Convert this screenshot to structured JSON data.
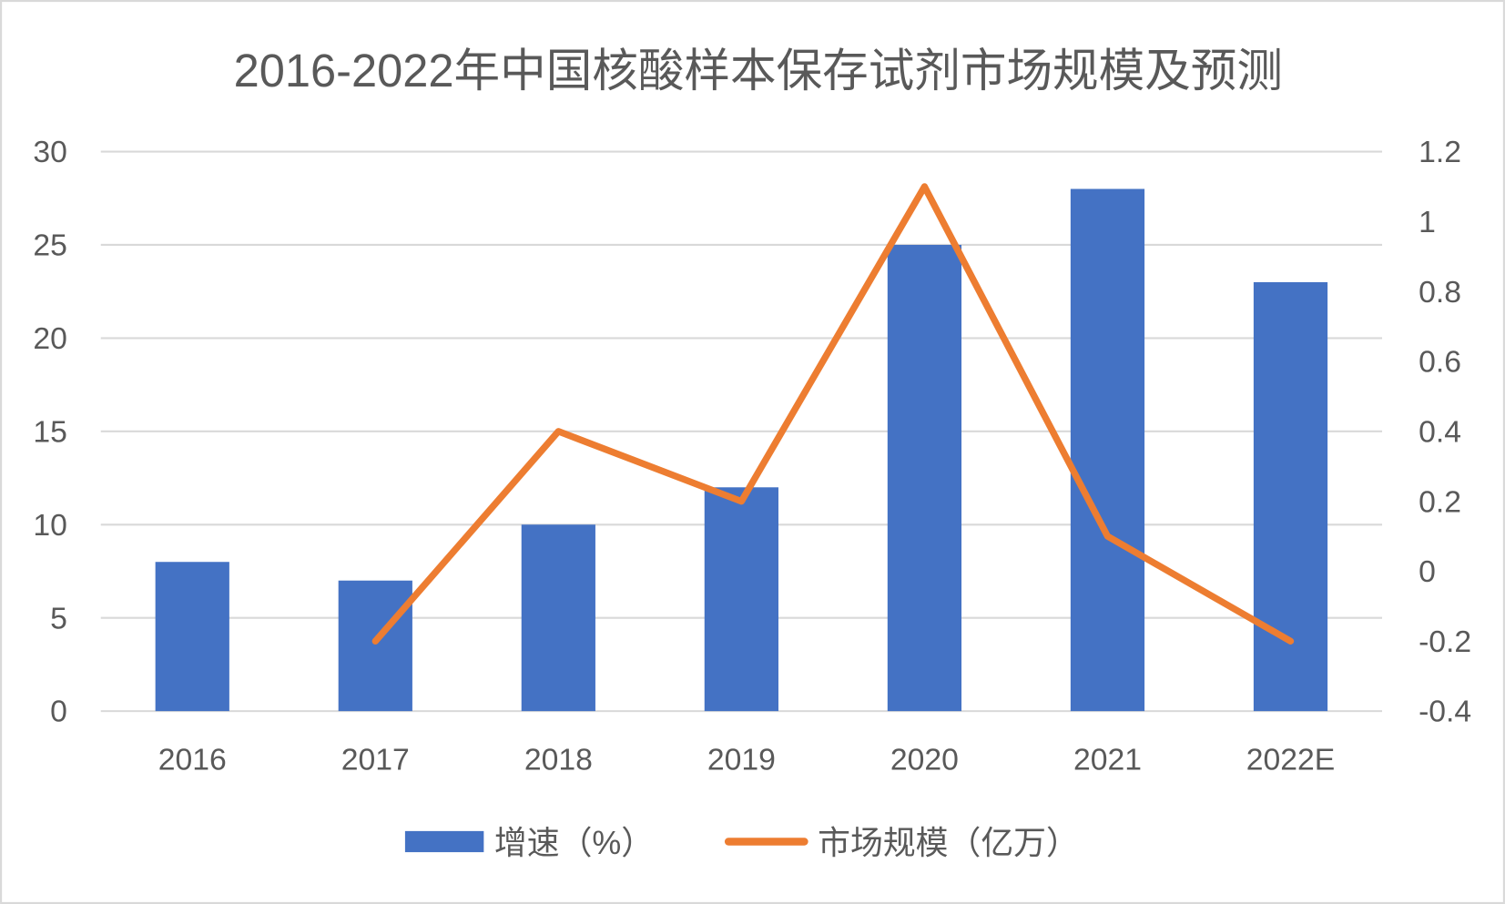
{
  "chart_data": {
    "type": "bar",
    "title": "2016-2022年中国核酸样本保存试剂市场规模及预测",
    "categories": [
      "2016",
      "2017",
      "2018",
      "2019",
      "2020",
      "2021",
      "2022E"
    ],
    "series": [
      {
        "name": "增速（%）",
        "type": "bar",
        "axis": "left",
        "color": "#4472C4",
        "values": [
          8,
          7,
          10,
          12,
          25,
          28,
          23
        ]
      },
      {
        "name": "市场规模（亿万）",
        "type": "line",
        "axis": "right",
        "color": "#ED7D31",
        "values": [
          null,
          -0.2,
          0.4,
          0.2,
          1.1,
          0.1,
          -0.2
        ]
      }
    ],
    "y_left": {
      "min": 0,
      "max": 30,
      "ticks": [
        "0",
        "5",
        "10",
        "15",
        "20",
        "25",
        "30"
      ]
    },
    "y_right": {
      "min": -0.4,
      "max": 1.2,
      "ticks": [
        "-0.4",
        "-0.2",
        "0",
        "0.2",
        "0.4",
        "0.6",
        "0.8",
        "1",
        "1.2"
      ]
    },
    "grid": true,
    "legend": "bottom",
    "colors": {
      "text": "#595959",
      "grid": "#D9D9D9",
      "border": "#D9D9D9"
    }
  }
}
